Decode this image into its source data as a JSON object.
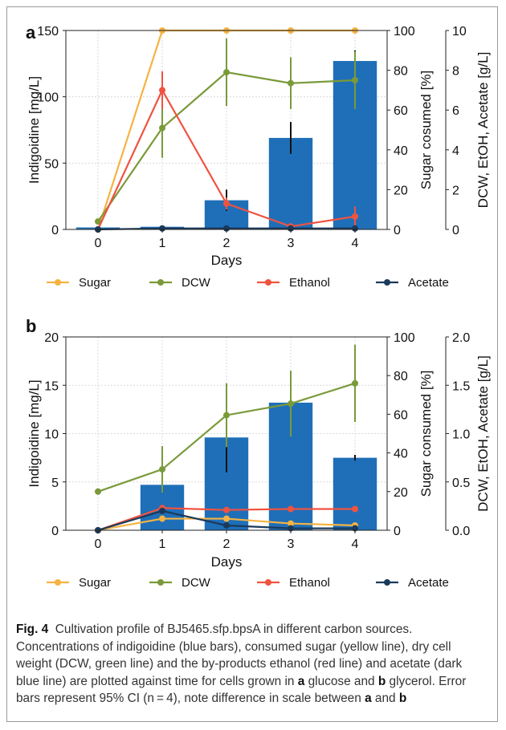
{
  "colors": {
    "bar": "#1f6fb8",
    "sugar": "#f5b342",
    "dcw": "#7a9a3a",
    "ethanol": "#ef5340",
    "acetate": "#1a3a5c",
    "grid": "#d9d9d9"
  },
  "caption": {
    "label": "Fig. 4",
    "before_a": "Cultivation profile of BJ5465.sfp.bpsA in different carbon sources. Concentrations of indigoidine (blue bars), consumed sugar (yellow line), dry cell weight (DCW, green line) and the by-products ethanol (red line) and acetate (dark blue line) are plotted against time for cells grown in ",
    "a": "a",
    "between_ab": " glucose and ",
    "b": "b",
    "before_a2": " glycerol. Error bars represent 95% CI (n = 4), note difference in scale between ",
    "a2": "a",
    "and_text": " and ",
    "b2": "b"
  },
  "chart_data": [
    {
      "panel": "a",
      "type": "bar",
      "categories": [
        0,
        1,
        2,
        3,
        4
      ],
      "xlabel": "Days",
      "ylabel": "Indigoidine [mg/L]",
      "ylabel_right1": "Sugar cosumed [%]",
      "ylabel_right2": "DCW, EtOH, Acetate [g/L]",
      "ylim": [
        0,
        150
      ],
      "yticks": [
        "0",
        "50",
        "100",
        "150"
      ],
      "ylim_right1": [
        0,
        100
      ],
      "yticks_right1": [
        "0",
        "20",
        "40",
        "60",
        "80",
        "100"
      ],
      "ylim_right2": [
        0,
        10
      ],
      "yticks_right2": [
        "0",
        "2",
        "4",
        "6",
        "8",
        "10"
      ],
      "grid": true,
      "legend": [
        "Sugar",
        "DCW",
        "Ethanol",
        "Acetate"
      ],
      "bars": {
        "values": [
          1.5,
          2,
          22,
          69,
          127
        ],
        "errors": [
          0.5,
          0.5,
          8,
          12,
          8
        ]
      },
      "series": [
        {
          "name": "Sugar",
          "axis": "right1",
          "x": [
            0,
            1,
            2,
            3,
            4
          ],
          "values": [
            0,
            100,
            100,
            100,
            100
          ],
          "errors": [
            0,
            0,
            0,
            0,
            0
          ]
        },
        {
          "name": "DCW",
          "axis": "right2",
          "x": [
            0,
            1,
            2,
            3,
            4
          ],
          "values": [
            0.4,
            5.1,
            7.9,
            7.35,
            7.5
          ],
          "errors": [
            0,
            1.5,
            1.7,
            1.3,
            1.45
          ]
        },
        {
          "name": "Ethanol",
          "axis": "right2",
          "x": [
            0,
            1,
            2,
            3,
            4
          ],
          "values": [
            0,
            7.0,
            1.3,
            0.15,
            0.65
          ],
          "errors": [
            0,
            0.95,
            0.3,
            0.1,
            0.5
          ]
        },
        {
          "name": "Acetate",
          "axis": "right2",
          "x": [
            0,
            1,
            2,
            3,
            4
          ],
          "values": [
            0,
            0.05,
            0.05,
            0.05,
            0.05
          ],
          "errors": [
            0,
            0,
            0,
            0,
            0
          ]
        }
      ]
    },
    {
      "panel": "b",
      "type": "bar",
      "categories": [
        0,
        1,
        2,
        3,
        4
      ],
      "xlabel": "Days",
      "ylabel": "Indigoidine [mg/L]",
      "ylabel_right1": "Sugar consumed [%]",
      "ylabel_right2": "DCW, EtOH, Acetate [g/L]",
      "ylim": [
        0,
        20
      ],
      "yticks": [
        "0",
        "5",
        "10",
        "15",
        "20"
      ],
      "ylim_right1": [
        0,
        100
      ],
      "yticks_right1": [
        "0",
        "20",
        "40",
        "60",
        "80",
        "100"
      ],
      "ylim_right2": [
        0,
        2.0
      ],
      "yticks_right2": [
        "0.0",
        "0.5",
        "1.0",
        "1.5",
        "2.0"
      ],
      "grid": true,
      "legend": [
        "Sugar",
        "DCW",
        "Ethanol",
        "Acetate"
      ],
      "bars": {
        "values": [
          0,
          4.7,
          9.6,
          13.2,
          7.5
        ],
        "errors": [
          0,
          0,
          3.6,
          0,
          0.3
        ]
      },
      "series": [
        {
          "name": "Sugar",
          "axis": "right1",
          "x": [
            0,
            1,
            2,
            3,
            4
          ],
          "values": [
            0,
            6,
            6,
            3.5,
            2.5
          ],
          "errors": [
            0,
            0,
            0,
            0,
            0
          ]
        },
        {
          "name": "DCW",
          "axis": "right2",
          "x": [
            0,
            1,
            2,
            3,
            4
          ],
          "values": [
            0.4,
            0.63,
            1.19,
            1.31,
            1.52
          ],
          "errors": [
            0,
            0.24,
            0.33,
            0.34,
            0.4
          ]
        },
        {
          "name": "Ethanol",
          "axis": "right2",
          "x": [
            0,
            1,
            2,
            3,
            4
          ],
          "values": [
            0,
            0.23,
            0.21,
            0.22,
            0.22
          ],
          "errors": [
            0,
            0,
            0,
            0,
            0
          ]
        },
        {
          "name": "Acetate",
          "axis": "right2",
          "x": [
            0,
            1,
            2,
            3,
            4
          ],
          "values": [
            0,
            0.2,
            0.05,
            0.02,
            0.02
          ],
          "errors": [
            0,
            0.03,
            0,
            0,
            0
          ]
        }
      ]
    }
  ]
}
